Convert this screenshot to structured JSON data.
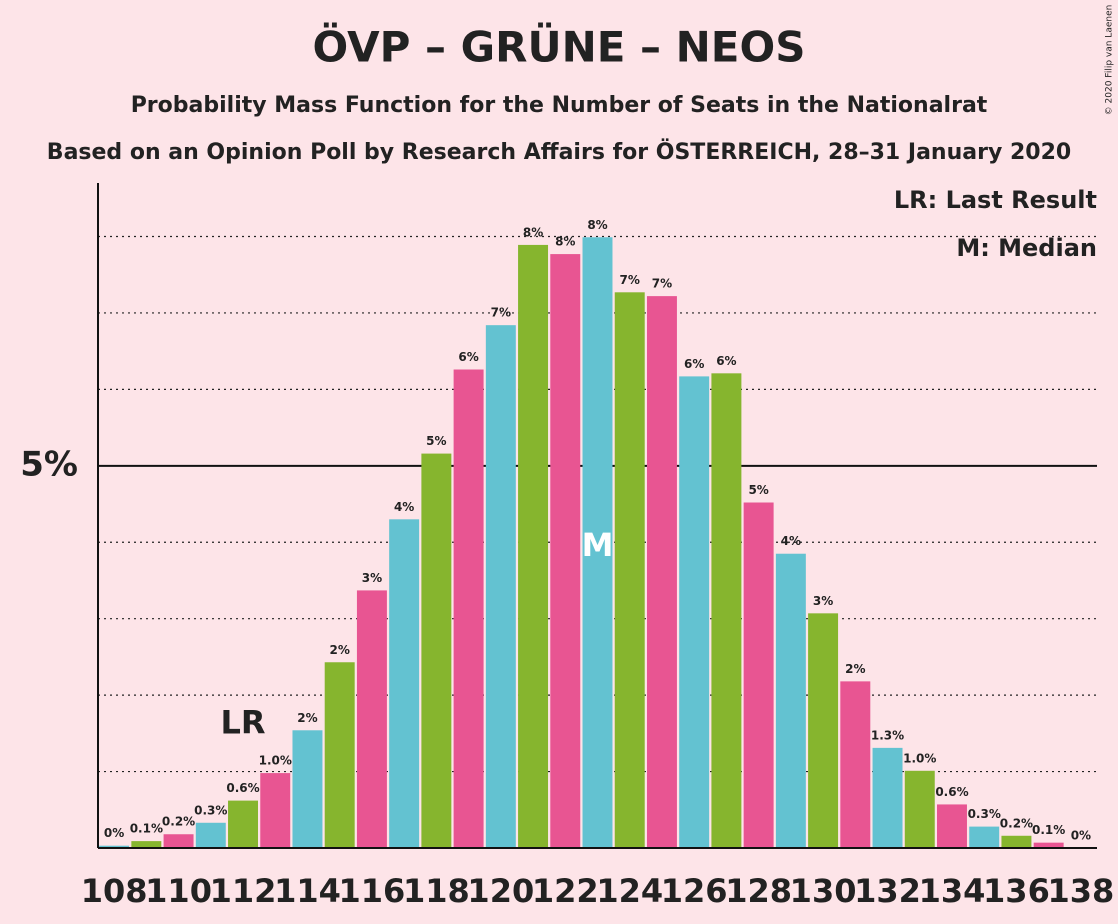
{
  "chart_data": {
    "type": "bar",
    "title": "ÖVP – GRÜNE – NEOS",
    "subtitle": "Probability Mass Function for the Number of Seats in the Nationalrat",
    "subtitle2": "Based on an Opinion Poll by Research Affairs for ÖSTERREICH, 28–31 January 2020",
    "copyright": "© 2020 Filip van Laenen",
    "x": [
      108,
      109,
      110,
      111,
      112,
      113,
      114,
      115,
      116,
      117,
      118,
      119,
      120,
      121,
      122,
      123,
      124,
      125,
      126,
      127,
      128,
      129,
      130,
      131,
      132,
      133,
      134,
      135,
      136,
      137,
      138
    ],
    "values": [
      0.03,
      0.09,
      0.18,
      0.33,
      0.62,
      0.98,
      1.54,
      2.43,
      3.37,
      4.3,
      5.16,
      6.26,
      6.84,
      7.89,
      7.77,
      7.99,
      7.27,
      7.22,
      6.17,
      6.21,
      4.52,
      3.85,
      3.07,
      2.18,
      1.31,
      1.01,
      0.57,
      0.28,
      0.16,
      0.07,
      0
    ],
    "value_labels": [
      "0%",
      "0.1%",
      "0.2%",
      "0.3%",
      "0.6%",
      "1.0%",
      "2%",
      "2%",
      "3%",
      "4%",
      "5%",
      "6%",
      "7%",
      "8%",
      "8%",
      "8%",
      "7%",
      "7%",
      "6%",
      "6%",
      "5%",
      "4%",
      "3%",
      "2%",
      "1.3%",
      "1.0%",
      "0.6%",
      "0.3%",
      "0.2%",
      "0.1%",
      "0%"
    ],
    "bar_colors": [
      "#63c2d1",
      "#86b52e",
      "#e85592"
    ],
    "xlim": [
      107.5,
      138.5
    ],
    "xticks": [
      108,
      110,
      112,
      114,
      116,
      118,
      120,
      122,
      124,
      126,
      128,
      130,
      132,
      134,
      136,
      138
    ],
    "ylim": [
      0,
      8.7
    ],
    "yticks": [
      {
        "value": 5,
        "label": "5%"
      }
    ],
    "minor_grid": [
      1,
      2,
      3,
      4,
      6,
      7,
      8
    ],
    "markers": [
      {
        "label": "LR",
        "x": 112
      },
      {
        "label": "M",
        "x": 123
      }
    ],
    "legend": [
      "LR: Last Result",
      "M: Median"
    ]
  }
}
